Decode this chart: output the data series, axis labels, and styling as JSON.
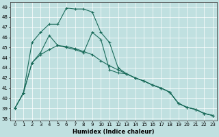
{
  "xlabel": "Humidex (Indice chaleur)",
  "bg_color": "#c0e0e0",
  "line_color": "#1a6b5a",
  "grid_color": "#ffffff",
  "xlim": [
    -0.5,
    23.5
  ],
  "ylim": [
    37.8,
    49.5
  ],
  "yticks": [
    38,
    39,
    40,
    41,
    42,
    43,
    44,
    45,
    46,
    47,
    48,
    49
  ],
  "xticks": [
    0,
    1,
    2,
    3,
    4,
    5,
    6,
    7,
    8,
    9,
    10,
    11,
    12,
    13,
    14,
    15,
    16,
    17,
    18,
    19,
    20,
    21,
    22,
    23
  ],
  "line1_x": [
    0,
    1,
    2,
    3,
    4,
    5,
    6,
    7,
    8,
    9,
    10,
    11,
    12,
    13,
    14,
    15,
    16,
    17,
    18,
    19,
    20,
    21,
    22,
    23
  ],
  "line1_y": [
    39.0,
    40.5,
    43.5,
    44.3,
    44.8,
    45.2,
    45.1,
    44.9,
    44.6,
    44.3,
    43.7,
    43.2,
    42.8,
    42.4,
    42.0,
    41.7,
    41.3,
    41.0,
    40.6,
    39.5,
    39.1,
    38.9,
    38.5,
    38.3
  ],
  "line2_x": [
    0,
    1,
    2,
    3,
    4,
    5,
    6,
    7,
    8,
    9,
    10,
    11,
    12,
    13,
    14,
    15,
    16,
    17,
    18,
    19,
    20,
    21,
    22,
    23
  ],
  "line2_y": [
    39.0,
    40.5,
    45.5,
    46.5,
    47.3,
    47.3,
    48.9,
    48.8,
    48.8,
    48.5,
    46.5,
    45.5,
    43.0,
    42.4,
    42.0,
    41.7,
    41.3,
    41.0,
    40.6,
    39.5,
    39.1,
    38.9,
    38.5,
    38.3
  ],
  "line3_x": [
    0,
    1,
    2,
    3,
    4,
    5,
    6,
    7,
    8,
    9,
    10,
    11,
    12,
    13,
    14,
    15,
    16,
    17,
    18,
    19,
    20,
    21,
    22,
    23
  ],
  "line3_y": [
    39.0,
    40.5,
    43.5,
    44.5,
    46.2,
    45.2,
    45.0,
    44.8,
    44.5,
    46.5,
    45.8,
    42.8,
    42.5,
    42.4,
    42.0,
    41.7,
    41.3,
    41.0,
    40.6,
    39.5,
    39.1,
    38.9,
    38.5,
    38.3
  ]
}
